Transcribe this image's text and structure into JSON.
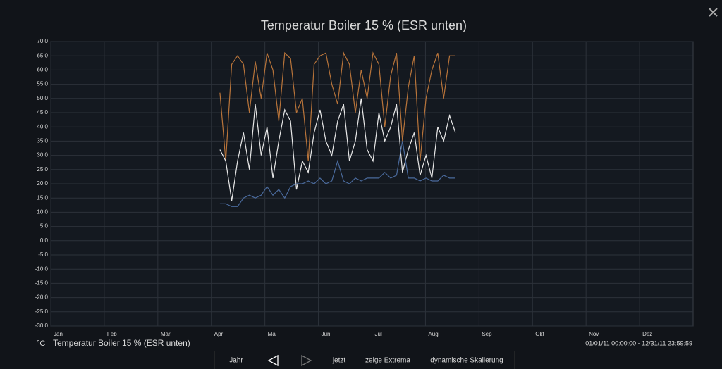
{
  "chart_data": {
    "type": "line",
    "title": "Temperatur Boiler 15 % (ESR unten)",
    "unit": "°C",
    "legend_label": "Temperatur Boiler 15 % (ESR unten)",
    "x": [
      3.16,
      3.27,
      3.38,
      3.49,
      3.6,
      3.71,
      3.82,
      3.93,
      4.04,
      4.15,
      4.26,
      4.37,
      4.48,
      4.59,
      4.7,
      4.81,
      4.92,
      5.03,
      5.14,
      5.25,
      5.36,
      5.47,
      5.58,
      5.69,
      5.8,
      5.91,
      6.02,
      6.13,
      6.24,
      6.35,
      6.46,
      6.57,
      6.68,
      6.79,
      6.9,
      7.01,
      7.12,
      7.23,
      7.34,
      7.45,
      7.56
    ],
    "series": [
      {
        "color": "#b8743a",
        "values": [
          52,
          28,
          62,
          65,
          62,
          45,
          63,
          50,
          66,
          60,
          42,
          66,
          64,
          45,
          50,
          28,
          62,
          65,
          66,
          55,
          48,
          66,
          62,
          45,
          60,
          50,
          66,
          62,
          40,
          58,
          66,
          35,
          54,
          65,
          28,
          50,
          60,
          66,
          50,
          65,
          65
        ]
      },
      {
        "color": "#e8e8e8",
        "values": [
          32,
          28,
          14,
          28,
          38,
          25,
          48,
          30,
          40,
          22,
          35,
          46,
          42,
          18,
          28,
          24,
          38,
          46,
          35,
          30,
          42,
          48,
          28,
          35,
          50,
          32,
          28,
          45,
          35,
          40,
          48,
          24,
          32,
          38,
          23,
          30,
          22,
          40,
          35,
          44,
          38
        ]
      },
      {
        "color": "#4a6a9c",
        "values": [
          13,
          13,
          12,
          12,
          15,
          16,
          15,
          16,
          19,
          16,
          18,
          15,
          19,
          20,
          20,
          21,
          20,
          22,
          20,
          21,
          28,
          21,
          20,
          22,
          21,
          22,
          22,
          22,
          24,
          22,
          23,
          35,
          22,
          22,
          21,
          22,
          21,
          21,
          23,
          22,
          22
        ]
      }
    ],
    "xlim": [
      0,
      12
    ],
    "xticks": [
      {
        "value": 0,
        "label": "Jan"
      },
      {
        "value": 1,
        "label": "Feb"
      },
      {
        "value": 2,
        "label": "Mar"
      },
      {
        "value": 3,
        "label": "Apr"
      },
      {
        "value": 4,
        "label": "Mai"
      },
      {
        "value": 5,
        "label": "Jun"
      },
      {
        "value": 6,
        "label": "Jul"
      },
      {
        "value": 7,
        "label": "Aug"
      },
      {
        "value": 8,
        "label": "Sep"
      },
      {
        "value": 9,
        "label": "Okt"
      },
      {
        "value": 10,
        "label": "Nov"
      },
      {
        "value": 11,
        "label": "Dez"
      }
    ],
    "ylim": [
      -30,
      70
    ],
    "yticks": [
      {
        "value": 70,
        "label": "70.0"
      },
      {
        "value": 65,
        "label": "65.0"
      },
      {
        "value": 60,
        "label": "60.0"
      },
      {
        "value": 55,
        "label": "55.0"
      },
      {
        "value": 50,
        "label": "50.0"
      },
      {
        "value": 45,
        "label": "45.0"
      },
      {
        "value": 40,
        "label": "40.0"
      },
      {
        "value": 35,
        "label": "35.0"
      },
      {
        "value": 30,
        "label": "30.0"
      },
      {
        "value": 25,
        "label": "25.0"
      },
      {
        "value": 20,
        "label": "20.0"
      },
      {
        "value": 15,
        "label": "15.0"
      },
      {
        "value": 10,
        "label": "10.0"
      },
      {
        "value": 5,
        "label": "5.0"
      },
      {
        "value": 0,
        "label": "0.0"
      },
      {
        "value": -5,
        "label": "-5.0"
      },
      {
        "value": -10,
        "label": "-10.0"
      },
      {
        "value": -15,
        "label": "-15.0"
      },
      {
        "value": -20,
        "label": "-20.0"
      },
      {
        "value": -25,
        "label": "-25.0"
      },
      {
        "value": -30,
        "label": "-30.0"
      }
    ],
    "grid": true
  },
  "range": "01/01/11 00:00:00 - 12/31/11 23:59:59",
  "controls": [
    "Jahr",
    "jetzt",
    "zeige Extrema",
    "dynamische Skalierung"
  ]
}
